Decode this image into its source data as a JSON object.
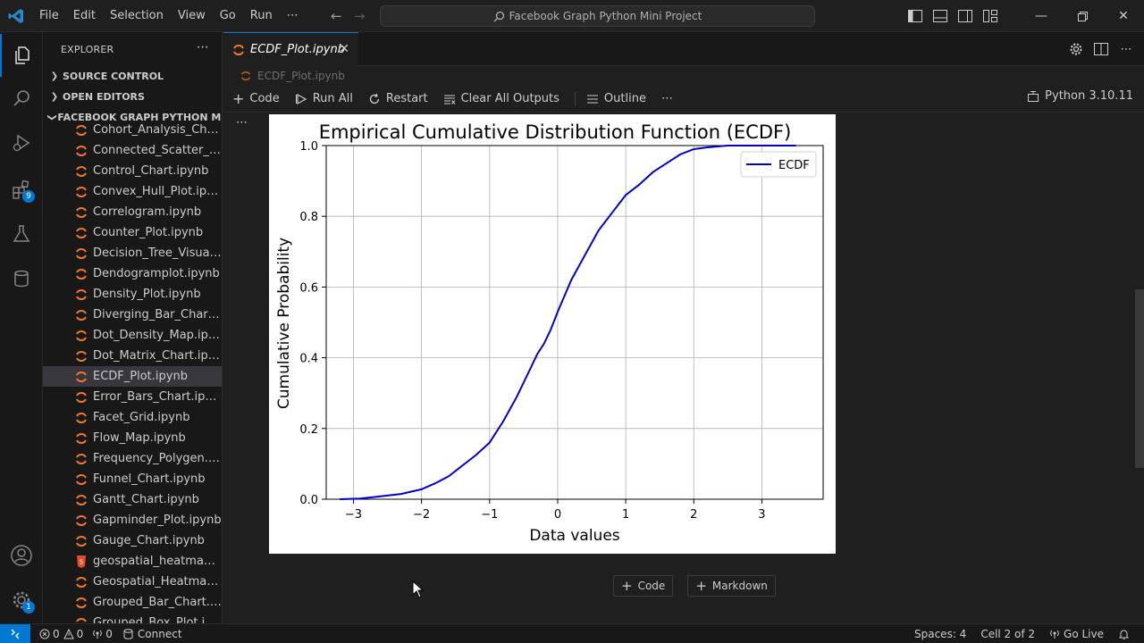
{
  "menu": [
    "File",
    "Edit",
    "Selection",
    "View",
    "Go",
    "Run",
    "⋯"
  ],
  "search": {
    "text": "Facebook Graph Python Mini Project"
  },
  "sidebar": {
    "title": "EXPLORER",
    "sections": [
      "SOURCE CONTROL",
      "OPEN EDITORS"
    ],
    "folder": "FACEBOOK GRAPH PYTHON MI...",
    "files": [
      "Cohort_Analysis_Chart.i...",
      "Connected_Scatter_Plot....",
      "Control_Chart.ipynb",
      "Convex_Hull_Plot.ipynb",
      "Correlogram.ipynb",
      "Counter_Plot.ipynb",
      "Decision_Tree_Visualisa...",
      "Dendogramplot.ipynb",
      "Density_Plot.ipynb",
      "Diverging_Bar_Chart.ip...",
      "Dot_Density_Map.ipynb",
      "Dot_Matrix_Chart.ipynb",
      "ECDF_Plot.ipynb",
      "Error_Bars_Chart.ipynb",
      "Facet_Grid.ipynb",
      "Flow_Map.ipynb",
      "Frequency_Polygen.ipy...",
      "Funnel_Chart.ipynb",
      "Gantt_Chart.ipynb",
      "Gapminder_Plot.ipynb",
      "Gauge_Chart.ipynb",
      "geospatial_heatmap.html",
      "Geospatial_Heatmap.ip...",
      "Grouped_Bar_Chart.ipy...",
      "Grouped_Box_Plot.ipynb"
    ],
    "selected_index": 12
  },
  "activity": {
    "extensions_badge": "9",
    "settings_badge": "1"
  },
  "tab": {
    "label": "ECDF_Plot.ipynb",
    "close": "✕"
  },
  "breadcrumb": "ECDF_Plot.ipynb",
  "toolbar": {
    "code": "Code",
    "run_all": "Run All",
    "restart": "Restart",
    "clear": "Clear All Outputs",
    "outline": "Outline",
    "more": "⋯"
  },
  "kernel": "Python 3.10.11",
  "cell": {
    "dots": "⋯"
  },
  "bottom_buttons": {
    "code": "Code",
    "markdown": "Markdown"
  },
  "status": {
    "errors": "0",
    "warnings": "0",
    "ports": "0",
    "connect": "Connect",
    "spaces": "Spaces: 4",
    "cell": "Cell 2 of 2",
    "golive": "Go Live"
  },
  "colors": {
    "accent": "#0078d4",
    "jupyter_orange": "#f37726",
    "html_orange": "#e44d26",
    "ecdf_line": "#0000cd"
  },
  "chart_data": {
    "type": "line",
    "title": "Empirical Cumulative Distribution Function (ECDF)",
    "xlabel": "Data values",
    "ylabel": "Cumulative Probability",
    "xlim": [
      -3.4,
      3.9
    ],
    "ylim": [
      0.0,
      1.0
    ],
    "xticks": [
      -3,
      -2,
      -1,
      0,
      1,
      2,
      3
    ],
    "yticks": [
      0.0,
      0.2,
      0.4,
      0.6,
      0.8,
      1.0
    ],
    "xtick_labels": [
      "−3",
      "−2",
      "−1",
      "0",
      "1",
      "2",
      "3"
    ],
    "ytick_labels": [
      "0.0",
      "0.2",
      "0.4",
      "0.6",
      "0.8",
      "1.0"
    ],
    "grid": true,
    "legend": "top-right",
    "series": [
      {
        "name": "ECDF",
        "x": [
          -3.2,
          -2.9,
          -2.6,
          -2.3,
          -2.0,
          -1.8,
          -1.6,
          -1.4,
          -1.2,
          -1.0,
          -0.8,
          -0.6,
          -0.4,
          -0.3,
          -0.2,
          -0.1,
          0.0,
          0.2,
          0.4,
          0.6,
          0.8,
          1.0,
          1.2,
          1.4,
          1.6,
          1.8,
          2.0,
          2.2,
          2.5,
          2.8,
          3.1,
          3.5
        ],
        "y": [
          0.0,
          0.002,
          0.008,
          0.015,
          0.028,
          0.045,
          0.065,
          0.095,
          0.125,
          0.16,
          0.22,
          0.29,
          0.37,
          0.41,
          0.44,
          0.48,
          0.53,
          0.62,
          0.69,
          0.76,
          0.81,
          0.86,
          0.89,
          0.925,
          0.95,
          0.975,
          0.99,
          0.995,
          1.0,
          1.0,
          1.0,
          1.0
        ]
      }
    ]
  }
}
